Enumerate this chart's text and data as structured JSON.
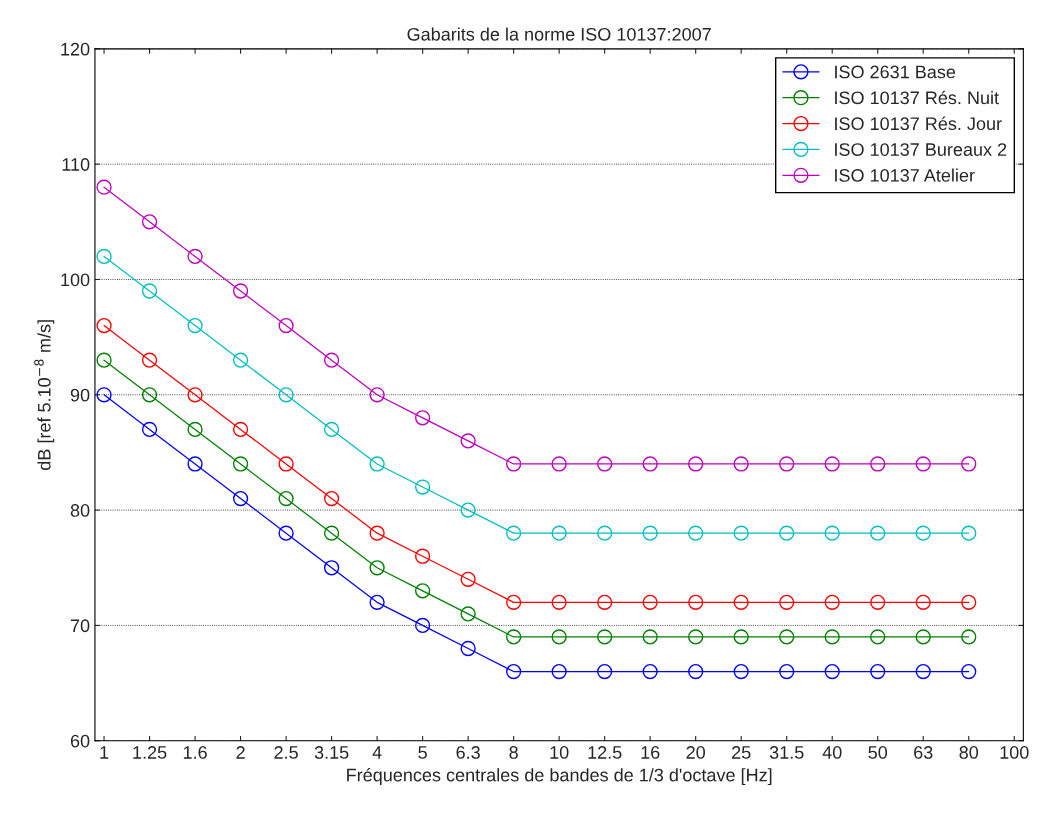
{
  "chart_data": {
    "type": "line",
    "title": "Gabarits de la norme ISO 10137:2007",
    "xlabel": "Fréquences centrales de bandes de 1/3 d'octave [Hz]",
    "ylabel": "dB [ref 5.10$^{−8}$ m/s]",
    "categories": [
      "1",
      "1.25",
      "1.6",
      "2",
      "2.5",
      "3.15",
      "4",
      "5",
      "6.3",
      "8",
      "10",
      "12.5",
      "16",
      "20",
      "25",
      "31.5",
      "40",
      "50",
      "63",
      "80",
      "100"
    ],
    "series": [
      {
        "name": "ISO 2631 Base",
        "color": "#0000ff",
        "values": [
          90,
          87,
          84,
          81,
          78,
          75,
          72,
          70,
          68,
          66,
          66,
          66,
          66,
          66,
          66,
          66,
          66,
          66,
          66,
          66,
          null
        ]
      },
      {
        "name": "ISO 10137 Rés. Nuit",
        "color": "#008000",
        "values": [
          93,
          90,
          87,
          84,
          81,
          78,
          75,
          73,
          71,
          69,
          69,
          69,
          69,
          69,
          69,
          69,
          69,
          69,
          69,
          69,
          null
        ]
      },
      {
        "name": "ISO 10137 Rés. Jour",
        "color": "#ff0000",
        "values": [
          96,
          93,
          90,
          87,
          84,
          81,
          78,
          76,
          74,
          72,
          72,
          72,
          72,
          72,
          72,
          72,
          72,
          72,
          72,
          72,
          null
        ]
      },
      {
        "name": "ISO 10137 Bureaux 2",
        "color": "#00bfbf",
        "values": [
          102,
          99,
          96,
          93,
          90,
          87,
          84,
          82,
          80,
          78,
          78,
          78,
          78,
          78,
          78,
          78,
          78,
          78,
          78,
          78,
          null
        ]
      },
      {
        "name": "ISO 10137 Atelier",
        "color": "#bf00bf",
        "values": [
          108,
          105,
          102,
          99,
          96,
          93,
          90,
          88,
          86,
          84,
          84,
          84,
          84,
          84,
          84,
          84,
          84,
          84,
          84,
          84,
          null
        ]
      }
    ],
    "ylim": [
      60,
      120
    ],
    "yticks": [
      60,
      70,
      80,
      90,
      100,
      110,
      120
    ],
    "grid": "y",
    "legend": "top right",
    "marker": "circle",
    "line_style": "solid"
  }
}
